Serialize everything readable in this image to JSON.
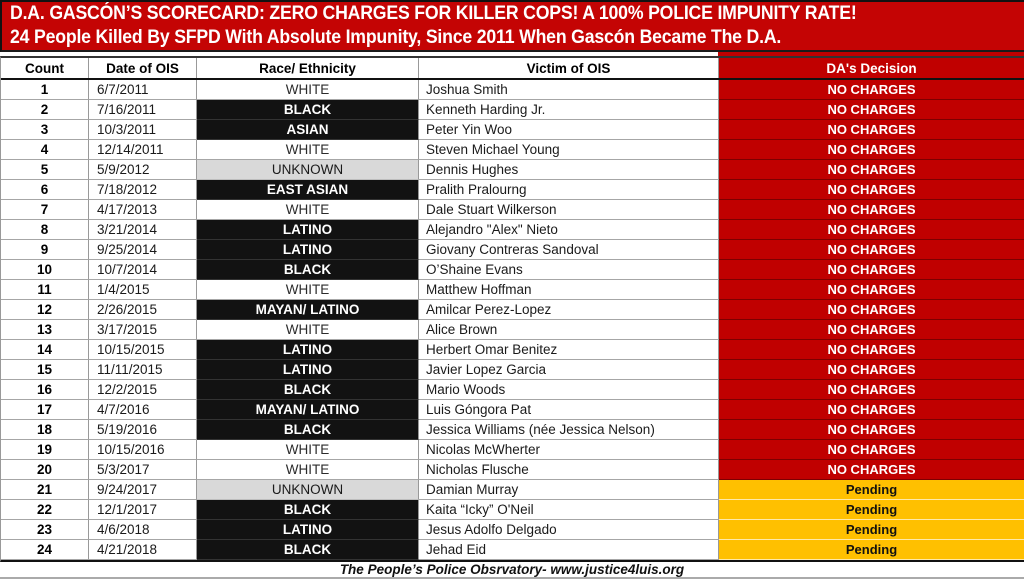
{
  "banner": {
    "line1": "D.A. GASCÓN’S SCORECARD: ZERO CHARGES FOR KILLER COPS! A 100% POLICE IMPUNITY RATE!",
    "line2": "24 People Killed By SFPD With Absolute Impunity, Since 2011 When Gascón Became The D.A."
  },
  "table": {
    "columns": [
      "Count",
      "Date of OIS",
      "Race/ Ethnicity",
      "Victim of OIS",
      "DA's Decision"
    ],
    "rows": [
      {
        "count": "1",
        "date": "6/7/2011",
        "race": "WHITE",
        "race_style": "white",
        "victim": "Joshua Smith",
        "decision": "NO CHARGES",
        "decision_style": "no-charges"
      },
      {
        "count": "2",
        "date": "7/16/2011",
        "race": "BLACK",
        "race_style": "black",
        "victim": "Kenneth Harding Jr.",
        "decision": "NO CHARGES",
        "decision_style": "no-charges"
      },
      {
        "count": "3",
        "date": "10/3/2011",
        "race": "ASIAN",
        "race_style": "black",
        "victim": "Peter Yin Woo",
        "decision": "NO CHARGES",
        "decision_style": "no-charges"
      },
      {
        "count": "4",
        "date": "12/14/2011",
        "race": "WHITE",
        "race_style": "white",
        "victim": "Steven Michael Young",
        "decision": "NO CHARGES",
        "decision_style": "no-charges"
      },
      {
        "count": "5",
        "date": "5/9/2012",
        "race": "UNKNOWN",
        "race_style": "unknown",
        "victim": "Dennis Hughes",
        "decision": "NO CHARGES",
        "decision_style": "no-charges"
      },
      {
        "count": "6",
        "date": "7/18/2012",
        "race": "EAST ASIAN",
        "race_style": "black",
        "victim": "Pralith Pralourng",
        "decision": "NO CHARGES",
        "decision_style": "no-charges"
      },
      {
        "count": "7",
        "date": "4/17/2013",
        "race": "WHITE",
        "race_style": "white",
        "victim": "Dale Stuart Wilkerson",
        "decision": "NO CHARGES",
        "decision_style": "no-charges"
      },
      {
        "count": "8",
        "date": "3/21/2014",
        "race": "LATINO",
        "race_style": "black",
        "victim": "Alejandro \"Alex\" Nieto",
        "decision": "NO CHARGES",
        "decision_style": "no-charges"
      },
      {
        "count": "9",
        "date": "9/25/2014",
        "race": "LATINO",
        "race_style": "black",
        "victim": "Giovany Contreras Sandoval",
        "decision": "NO CHARGES",
        "decision_style": "no-charges"
      },
      {
        "count": "10",
        "date": "10/7/2014",
        "race": "BLACK",
        "race_style": "black",
        "victim": "O’Shaine Evans",
        "decision": "NO CHARGES",
        "decision_style": "no-charges"
      },
      {
        "count": "11",
        "date": "1/4/2015",
        "race": "WHITE",
        "race_style": "white",
        "victim": "Matthew Hoffman",
        "decision": "NO CHARGES",
        "decision_style": "no-charges"
      },
      {
        "count": "12",
        "date": "2/26/2015",
        "race": "MAYAN/ LATINO",
        "race_style": "black",
        "victim": "Amilcar Perez-Lopez",
        "decision": "NO CHARGES",
        "decision_style": "no-charges"
      },
      {
        "count": "13",
        "date": "3/17/2015",
        "race": "WHITE",
        "race_style": "white",
        "victim": "Alice Brown",
        "decision": "NO CHARGES",
        "decision_style": "no-charges"
      },
      {
        "count": "14",
        "date": "10/15/2015",
        "race": "LATINO",
        "race_style": "black",
        "victim": "Herbert Omar Benitez",
        "decision": "NO CHARGES",
        "decision_style": "no-charges"
      },
      {
        "count": "15",
        "date": "11/11/2015",
        "race": "LATINO",
        "race_style": "black",
        "victim": "Javier Lopez Garcia",
        "decision": "NO CHARGES",
        "decision_style": "no-charges"
      },
      {
        "count": "16",
        "date": "12/2/2015",
        "race": "BLACK",
        "race_style": "black",
        "victim": "Mario Woods",
        "decision": "NO CHARGES",
        "decision_style": "no-charges"
      },
      {
        "count": "17",
        "date": "4/7/2016",
        "race": "MAYAN/ LATINO",
        "race_style": "black",
        "victim": "Luis Góngora Pat",
        "decision": "NO CHARGES",
        "decision_style": "no-charges"
      },
      {
        "count": "18",
        "date": "5/19/2016",
        "race": "BLACK",
        "race_style": "black",
        "victim": "Jessica Williams (née Jessica Nelson)",
        "decision": "NO CHARGES",
        "decision_style": "no-charges"
      },
      {
        "count": "19",
        "date": "10/15/2016",
        "race": "WHITE",
        "race_style": "white",
        "victim": "Nicolas McWherter",
        "decision": "NO CHARGES",
        "decision_style": "no-charges"
      },
      {
        "count": "20",
        "date": "5/3/2017",
        "race": "WHITE",
        "race_style": "white",
        "victim": "Nicholas Flusche",
        "decision": "NO CHARGES",
        "decision_style": "no-charges"
      },
      {
        "count": "21",
        "date": "9/24/2017",
        "race": "UNKNOWN",
        "race_style": "unknown",
        "victim": "Damian Murray",
        "decision": "Pending",
        "decision_style": "pending"
      },
      {
        "count": "22",
        "date": "12/1/2017",
        "race": "BLACK",
        "race_style": "black",
        "victim": "Kaita “Icky” O'Neil",
        "decision": "Pending",
        "decision_style": "pending"
      },
      {
        "count": "23",
        "date": "4/6/2018",
        "race": "LATINO",
        "race_style": "black",
        "victim": "Jesus Adolfo Delgado",
        "decision": "Pending",
        "decision_style": "pending"
      },
      {
        "count": "24",
        "date": "4/21/2018",
        "race": "BLACK",
        "race_style": "black",
        "victim": "Jehad Eid",
        "decision": "Pending",
        "decision_style": "pending"
      }
    ]
  },
  "footer": {
    "text": "The People’s Police Obsrvatory- www.justice4luis.org"
  },
  "colors": {
    "banner_red": "#c40404",
    "no_charges_red": "#c00000",
    "pending_amber": "#ffc000",
    "race_black_bg": "#121212",
    "race_unknown_gray": "#d9d9d9"
  }
}
